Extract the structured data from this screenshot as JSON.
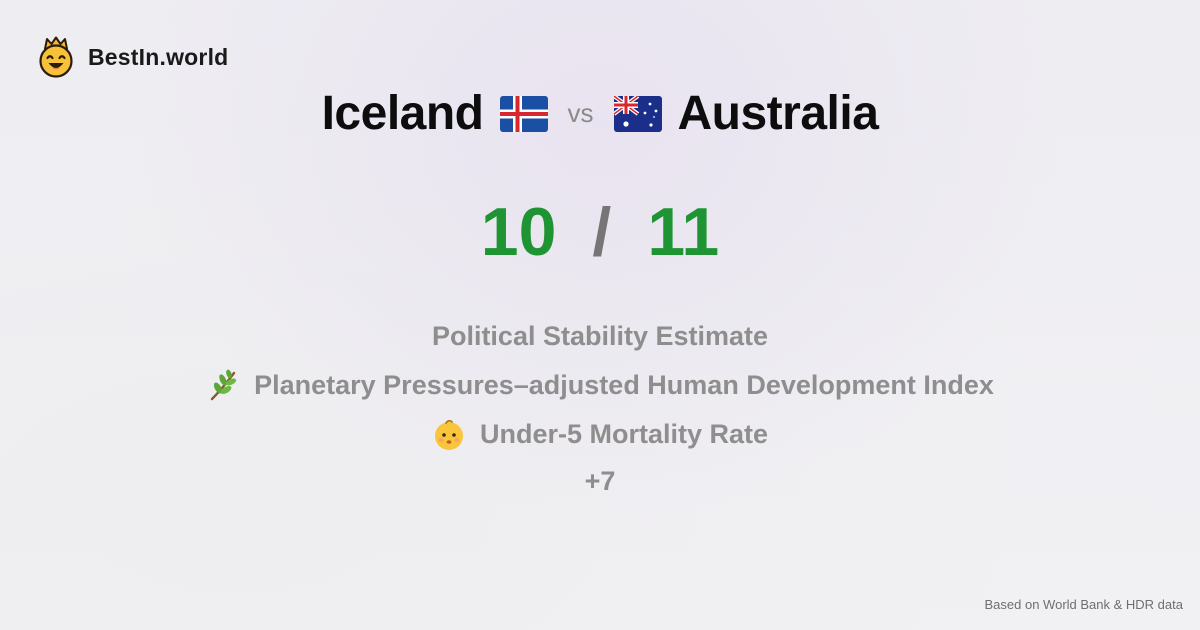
{
  "brand": {
    "name": "BestIn.world",
    "logo_icon": "crowned-smiley-icon"
  },
  "comparison": {
    "left_country": "Iceland",
    "left_flag": "iceland-flag-icon",
    "vs_label": "vs",
    "right_country": "Australia",
    "right_flag": "australia-flag-icon",
    "left_score": "10",
    "separator": "/",
    "right_score": "11"
  },
  "metrics": [
    {
      "label": "Political Stability Estimate",
      "icon": ""
    },
    {
      "label": "Planetary Pressures–adjusted Human Development Index",
      "icon": "herb-icon"
    },
    {
      "label": "Under-5 Mortality Rate",
      "icon": "baby-face-icon"
    }
  ],
  "more_label": "+7",
  "footer": "Based on World Bank & HDR data",
  "colors": {
    "score_green": "#1e9433",
    "separator_gray": "#767676",
    "metric_gray": "#8e8e8e",
    "logo_yellow": "#f7c23a"
  }
}
